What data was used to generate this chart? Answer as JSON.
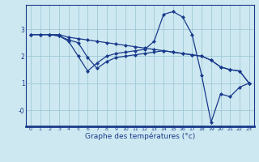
{
  "xlabel": "Graphe des températures (°c)",
  "background_color": "#cde8f0",
  "line_color": "#1a3a8c",
  "grid_color": "#a0c8d8",
  "xlim": [
    -0.5,
    23.5
  ],
  "ylim": [
    -0.6,
    3.9
  ],
  "yticks": [
    0,
    1,
    2,
    3
  ],
  "ytick_labels": [
    "-0",
    "1",
    "2",
    "3"
  ],
  "xticks": [
    0,
    1,
    2,
    3,
    4,
    5,
    6,
    7,
    8,
    9,
    10,
    11,
    12,
    13,
    14,
    15,
    16,
    17,
    18,
    19,
    20,
    21,
    22,
    23
  ],
  "series1": [
    2.8,
    2.8,
    2.8,
    2.8,
    2.7,
    2.65,
    2.6,
    2.55,
    2.5,
    2.45,
    2.4,
    2.35,
    2.3,
    2.25,
    2.2,
    2.15,
    2.1,
    2.05,
    2.0,
    1.85,
    1.6,
    1.5,
    1.45,
    1.0
  ],
  "series2": [
    2.8,
    2.8,
    2.8,
    2.75,
    2.55,
    2.0,
    1.45,
    1.75,
    2.0,
    2.1,
    2.15,
    2.2,
    2.25,
    2.55,
    3.55,
    3.65,
    3.45,
    2.8,
    1.3,
    -0.45,
    0.6,
    0.5,
    0.85,
    1.0
  ],
  "series3": [
    2.8,
    2.8,
    2.8,
    2.75,
    2.6,
    2.5,
    1.95,
    1.55,
    1.8,
    1.95,
    2.0,
    2.05,
    2.1,
    2.15,
    2.2,
    2.15,
    2.1,
    2.05,
    2.0,
    1.85,
    1.6,
    1.5,
    1.45,
    1.0
  ]
}
